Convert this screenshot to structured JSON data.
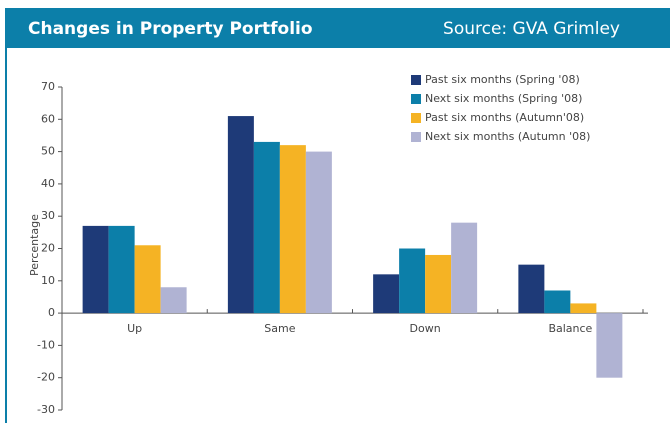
{
  "chart_data": {
    "type": "bar",
    "title": "Changes in Property Portfolio",
    "subtitle": "Source: GVA Grimley",
    "y_label": "Percentage",
    "categories": [
      "Up",
      "Same",
      "Down",
      "Balance"
    ],
    "series": [
      {
        "name": "Past six months (Spring '08)",
        "color": "#1e3a78",
        "values": [
          27,
          61,
          12,
          15
        ]
      },
      {
        "name": "Next six months (Spring '08)",
        "color": "#0c7fa9",
        "values": [
          27,
          53,
          20,
          7
        ]
      },
      {
        "name": "Past six months (Autumn'08)",
        "color": "#f5b324",
        "values": [
          21,
          52,
          18,
          3
        ]
      },
      {
        "name": "Next six months (Autumn '08)",
        "color": "#b0b3d3",
        "values": [
          8,
          50,
          28,
          -20
        ]
      }
    ],
    "ylim": [
      -30,
      70
    ],
    "yticks": [
      -30,
      -20,
      -10,
      0,
      10,
      20,
      30,
      40,
      50,
      60,
      70
    ],
    "legend": "upper right"
  }
}
